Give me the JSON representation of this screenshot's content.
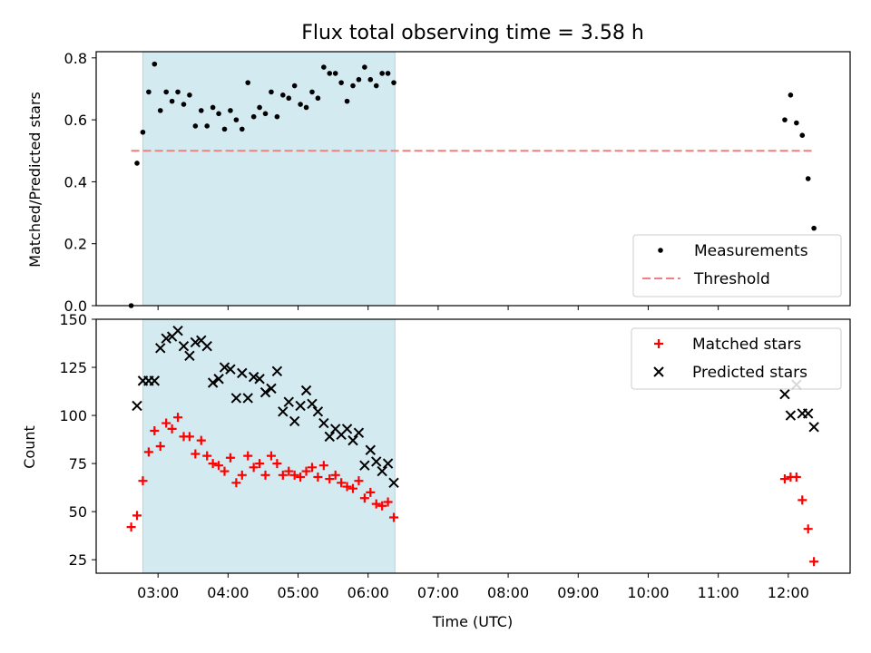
{
  "chart_data": [
    {
      "type": "scatter",
      "title": "Flux total observing time = 3.58 h",
      "xlabel": "",
      "ylabel": "Matched/Predicted stars",
      "ylim": [
        0,
        0.82
      ],
      "yticks": [
        0.0,
        0.2,
        0.4,
        0.6,
        0.8
      ],
      "ytick_labels": [
        "0.0",
        "0.2",
        "0.4",
        "0.6",
        "0.8"
      ],
      "xlim": [
        "02:07",
        "12:53"
      ],
      "shaded_interval": [
        "02:47",
        "06:23"
      ],
      "shaded_color": "#d4eaf1",
      "legend_position": "lower-right",
      "series": [
        {
          "name": "Measurements",
          "color": "#000000",
          "marker": "dot",
          "points": [
            [
              "02:37",
              0.0
            ],
            [
              "02:42",
              0.46
            ],
            [
              "02:47",
              0.56
            ],
            [
              "02:52",
              0.69
            ],
            [
              "02:57",
              0.78
            ],
            [
              "03:02",
              0.63
            ],
            [
              "03:07",
              0.69
            ],
            [
              "03:12",
              0.66
            ],
            [
              "03:17",
              0.69
            ],
            [
              "03:22",
              0.65
            ],
            [
              "03:27",
              0.68
            ],
            [
              "03:32",
              0.58
            ],
            [
              "03:37",
              0.63
            ],
            [
              "03:42",
              0.58
            ],
            [
              "03:47",
              0.64
            ],
            [
              "03:52",
              0.62
            ],
            [
              "03:57",
              0.57
            ],
            [
              "04:02",
              0.63
            ],
            [
              "04:07",
              0.6
            ],
            [
              "04:12",
              0.57
            ],
            [
              "04:17",
              0.72
            ],
            [
              "04:22",
              0.61
            ],
            [
              "04:27",
              0.64
            ],
            [
              "04:32",
              0.62
            ],
            [
              "04:37",
              0.69
            ],
            [
              "04:42",
              0.61
            ],
            [
              "04:47",
              0.68
            ],
            [
              "04:52",
              0.67
            ],
            [
              "04:57",
              0.71
            ],
            [
              "05:02",
              0.65
            ],
            [
              "05:07",
              0.64
            ],
            [
              "05:12",
              0.69
            ],
            [
              "05:17",
              0.67
            ],
            [
              "05:22",
              0.77
            ],
            [
              "05:27",
              0.75
            ],
            [
              "05:32",
              0.75
            ],
            [
              "05:37",
              0.72
            ],
            [
              "05:42",
              0.66
            ],
            [
              "05:47",
              0.71
            ],
            [
              "05:52",
              0.73
            ],
            [
              "05:57",
              0.77
            ],
            [
              "06:02",
              0.73
            ],
            [
              "06:07",
              0.71
            ],
            [
              "06:12",
              0.75
            ],
            [
              "06:17",
              0.75
            ],
            [
              "06:22",
              0.72
            ],
            [
              "11:57",
              0.6
            ],
            [
              "12:02",
              0.68
            ],
            [
              "12:07",
              0.59
            ],
            [
              "12:12",
              0.55
            ],
            [
              "12:17",
              0.41
            ],
            [
              "12:22",
              0.25
            ]
          ]
        },
        {
          "name": "Threshold",
          "color": "#f08080",
          "style": "dashed",
          "points": [
            [
              "02:37",
              0.5
            ],
            [
              "12:22",
              0.5
            ]
          ]
        }
      ]
    },
    {
      "type": "scatter",
      "title": "",
      "xlabel": "Time (UTC)",
      "ylabel": "Count",
      "ylim": [
        18,
        150
      ],
      "yticks": [
        25,
        50,
        75,
        100,
        125,
        150
      ],
      "ytick_labels": [
        "25",
        "50",
        "75",
        "100",
        "125",
        "150"
      ],
      "xlim": [
        "02:07",
        "12:53"
      ],
      "xticks": [
        "03:00",
        "04:00",
        "05:00",
        "06:00",
        "07:00",
        "08:00",
        "09:00",
        "10:00",
        "11:00",
        "12:00"
      ],
      "xtick_labels": [
        "03:00",
        "04:00",
        "05:00",
        "06:00",
        "07:00",
        "08:00",
        "09:00",
        "10:00",
        "11:00",
        "12:00"
      ],
      "shaded_interval": [
        "02:47",
        "06:23"
      ],
      "shaded_color": "#d4eaf1",
      "legend_position": "upper-right",
      "series": [
        {
          "name": "Matched stars",
          "color": "#ff0000",
          "marker": "plus",
          "points": [
            [
              "02:37",
              42
            ],
            [
              "02:42",
              48
            ],
            [
              "02:47",
              66
            ],
            [
              "02:52",
              81
            ],
            [
              "02:57",
              92
            ],
            [
              "03:02",
              84
            ],
            [
              "03:07",
              96
            ],
            [
              "03:12",
              93
            ],
            [
              "03:17",
              99
            ],
            [
              "03:22",
              89
            ],
            [
              "03:27",
              89
            ],
            [
              "03:32",
              80
            ],
            [
              "03:37",
              87
            ],
            [
              "03:42",
              79
            ],
            [
              "03:47",
              75
            ],
            [
              "03:52",
              74
            ],
            [
              "03:57",
              71
            ],
            [
              "04:02",
              78
            ],
            [
              "04:07",
              65
            ],
            [
              "04:12",
              69
            ],
            [
              "04:17",
              79
            ],
            [
              "04:22",
              73
            ],
            [
              "04:27",
              75
            ],
            [
              "04:32",
              69
            ],
            [
              "04:37",
              79
            ],
            [
              "04:42",
              75
            ],
            [
              "04:47",
              69
            ],
            [
              "04:52",
              71
            ],
            [
              "04:57",
              69
            ],
            [
              "05:02",
              68
            ],
            [
              "05:07",
              71
            ],
            [
              "05:12",
              73
            ],
            [
              "05:17",
              68
            ],
            [
              "05:22",
              74
            ],
            [
              "05:27",
              67
            ],
            [
              "05:32",
              69
            ],
            [
              "05:37",
              65
            ],
            [
              "05:42",
              63
            ],
            [
              "05:47",
              62
            ],
            [
              "05:52",
              66
            ],
            [
              "05:57",
              57
            ],
            [
              "06:02",
              60
            ],
            [
              "06:07",
              54
            ],
            [
              "06:12",
              53
            ],
            [
              "06:17",
              55
            ],
            [
              "06:22",
              47
            ],
            [
              "11:57",
              67
            ],
            [
              "12:02",
              68
            ],
            [
              "12:07",
              68
            ],
            [
              "12:12",
              56
            ],
            [
              "12:17",
              41
            ],
            [
              "12:22",
              24
            ]
          ]
        },
        {
          "name": "Predicted stars",
          "color": "#000000",
          "marker": "x",
          "points": [
            [
              "02:42",
              105
            ],
            [
              "02:47",
              118
            ],
            [
              "02:52",
              118
            ],
            [
              "02:57",
              118
            ],
            [
              "03:02",
              135
            ],
            [
              "03:07",
              140
            ],
            [
              "03:12",
              141
            ],
            [
              "03:17",
              144
            ],
            [
              "03:22",
              136
            ],
            [
              "03:27",
              131
            ],
            [
              "03:32",
              138
            ],
            [
              "03:37",
              139
            ],
            [
              "03:42",
              136
            ],
            [
              "03:47",
              117
            ],
            [
              "03:52",
              119
            ],
            [
              "03:57",
              125
            ],
            [
              "04:02",
              124
            ],
            [
              "04:07",
              109
            ],
            [
              "04:12",
              122
            ],
            [
              "04:17",
              109
            ],
            [
              "04:22",
              120
            ],
            [
              "04:27",
              119
            ],
            [
              "04:32",
              112
            ],
            [
              "04:37",
              114
            ],
            [
              "04:42",
              123
            ],
            [
              "04:47",
              102
            ],
            [
              "04:52",
              107
            ],
            [
              "04:57",
              97
            ],
            [
              "05:02",
              105
            ],
            [
              "05:07",
              113
            ],
            [
              "05:12",
              106
            ],
            [
              "05:17",
              102
            ],
            [
              "05:22",
              96
            ],
            [
              "05:27",
              89
            ],
            [
              "05:32",
              93
            ],
            [
              "05:37",
              90
            ],
            [
              "05:42",
              93
            ],
            [
              "05:47",
              87
            ],
            [
              "05:52",
              91
            ],
            [
              "05:57",
              74
            ],
            [
              "06:02",
              82
            ],
            [
              "06:07",
              76
            ],
            [
              "06:12",
              71
            ],
            [
              "06:17",
              75
            ],
            [
              "06:22",
              65
            ],
            [
              "11:57",
              111
            ],
            [
              "12:02",
              100
            ],
            [
              "12:07",
              116
            ],
            [
              "12:12",
              101
            ],
            [
              "12:17",
              101
            ],
            [
              "12:22",
              94
            ]
          ]
        }
      ]
    }
  ]
}
